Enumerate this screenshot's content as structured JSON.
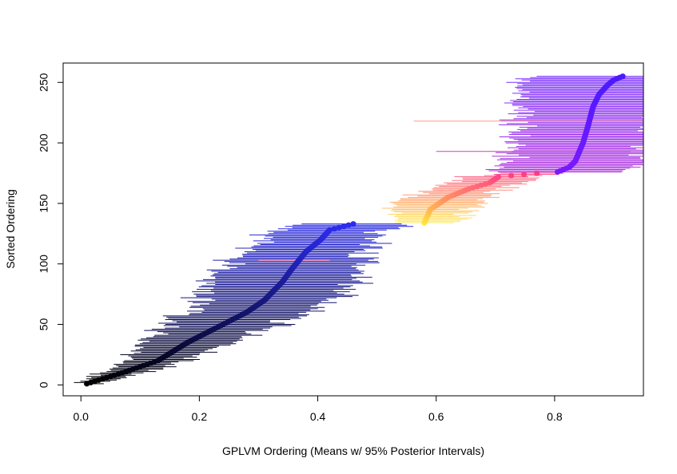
{
  "chart_data": {
    "type": "scatter",
    "title": "",
    "xlabel": "GPLVM Ordering (Means w/ 95% Posterior Intervals)",
    "ylabel": "Sorted Ordering",
    "xlim": [
      -0.03,
      0.95
    ],
    "ylim": [
      -9,
      266
    ],
    "x_ticks": [
      0,
      0.2,
      0.4,
      0.6,
      0.8
    ],
    "x_tick_labels": [
      "0.0",
      "0.2",
      "0.4",
      "0.6",
      "0.8"
    ],
    "y_ticks": [
      0,
      50,
      100,
      150,
      200,
      250
    ],
    "y_tick_labels": [
      "0",
      "50",
      "100",
      "150",
      "200",
      "250"
    ],
    "grid": false,
    "legend": "none",
    "series": [
      {
        "points_desc": "blue group",
        "y_range": [
          1,
          133
        ],
        "x_anchors": [
          [
            1,
            0.01
          ],
          [
            10,
            0.07
          ],
          [
            20,
            0.13
          ],
          [
            35,
            0.18
          ],
          [
            45,
            0.22
          ],
          [
            60,
            0.28
          ],
          [
            70,
            0.31
          ],
          [
            85,
            0.34
          ],
          [
            95,
            0.355
          ],
          [
            110,
            0.38
          ],
          [
            120,
            0.405
          ],
          [
            128,
            0.42
          ],
          [
            133,
            0.46
          ]
        ],
        "half_width_anchors": [
          [
            1,
            0.02
          ],
          [
            20,
            0.05
          ],
          [
            40,
            0.08
          ],
          [
            60,
            0.11
          ],
          [
            90,
            0.12
          ],
          [
            133,
            0.09
          ]
        ],
        "color_start": "#000000",
        "color_end": "#2c2cf0",
        "interval_color_start": "#000000",
        "interval_color_end": "#2a2ae8"
      },
      {
        "points_desc": "yellow-pink group",
        "y_range": [
          134,
          175
        ],
        "x_anchors": [
          [
            134,
            0.58
          ],
          [
            145,
            0.59
          ],
          [
            155,
            0.62
          ],
          [
            162,
            0.655
          ],
          [
            167,
            0.69
          ],
          [
            172,
            0.705
          ],
          [
            175,
            0.77
          ]
        ],
        "half_width_anchors": [
          [
            134,
            0.05
          ],
          [
            150,
            0.07
          ],
          [
            165,
            0.06
          ],
          [
            175,
            0.06
          ]
        ],
        "color_start": "#ffe640",
        "color_end": "#ff3a8a",
        "interval_color_start": "#ffee66",
        "interval_color_end": "#ff5c8a"
      },
      {
        "points_desc": "purple group",
        "y_range": [
          176,
          255
        ],
        "x_anchors": [
          [
            176,
            0.805
          ],
          [
            180,
            0.825
          ],
          [
            185,
            0.835
          ],
          [
            200,
            0.848
          ],
          [
            215,
            0.857
          ],
          [
            230,
            0.865
          ],
          [
            240,
            0.875
          ],
          [
            248,
            0.89
          ],
          [
            252,
            0.9
          ],
          [
            255,
            0.915
          ]
        ],
        "half_width_anchors": [
          [
            176,
            0.1
          ],
          [
            200,
            0.12
          ],
          [
            230,
            0.12
          ],
          [
            255,
            0.16
          ]
        ],
        "color_start": "#7a1aff",
        "color_end": "#4a1aff",
        "interval_color_start": "#b030e0",
        "interval_color_end": "#7a30ff"
      }
    ],
    "outlier_intervals": [
      {
        "y": 218,
        "x0": 0.562,
        "x1": 0.95,
        "color": "#ff9a8a"
      },
      {
        "y": 103,
        "x0": 0.3,
        "x1": 0.42,
        "color": "#ff6fa0"
      },
      {
        "y": 193,
        "x0": 0.6,
        "x1": 0.95,
        "color": "#d040a0"
      }
    ]
  }
}
